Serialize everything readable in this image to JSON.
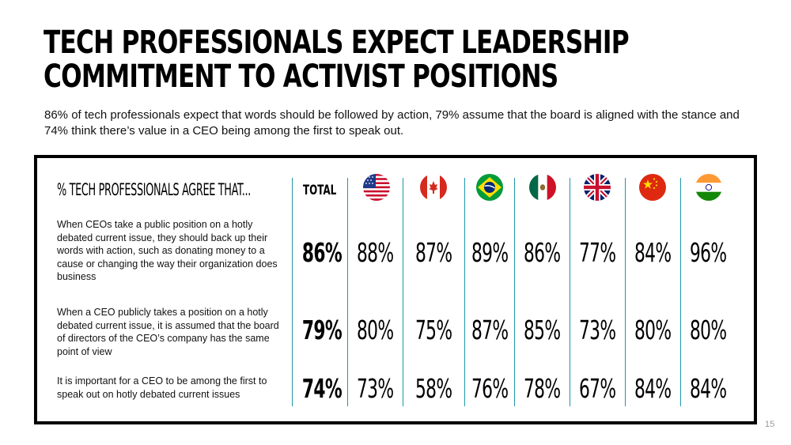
{
  "title": "TECH PROFESSIONALS EXPECT LEADERSHIP COMMITMENT TO ACTIVIST POSITIONS",
  "subtitle": "86% of tech professionals expect that words should be followed by action, 79% assume that the board is aligned with the stance and 74% think there’s value in a CEO being among the first to speak out.",
  "table": {
    "header_label": "% TECH PROFESSIONALS AGREE THAT...",
    "total_label": "TOTAL",
    "flags": [
      "us-flag-icon",
      "canada-flag-icon",
      "brazil-flag-icon",
      "mexico-flag-icon",
      "uk-flag-icon",
      "china-flag-icon",
      "india-flag-icon"
    ],
    "rows": [
      {
        "statement": "When CEOs take a public position on a hotly debated current issue, they should back up their words with action, such as donating money to a cause or changing the way their organization does business",
        "total": "86%",
        "values": [
          "88%",
          "87%",
          "89%",
          "86%",
          "77%",
          "84%",
          "96%"
        ]
      },
      {
        "statement": "When a CEO publicly takes a position on a hotly debated current issue, it is assumed that the board of directors of the CEO’s company has the same point of view",
        "total": "79%",
        "values": [
          "80%",
          "75%",
          "87%",
          "85%",
          "73%",
          "80%",
          "80%"
        ]
      },
      {
        "statement": "It is important for a CEO to be among the first to speak out on hotly debated current issues",
        "total": "74%",
        "values": [
          "73%",
          "58%",
          "76%",
          "78%",
          "67%",
          "84%",
          "84%"
        ]
      }
    ]
  },
  "page_number": "15"
}
